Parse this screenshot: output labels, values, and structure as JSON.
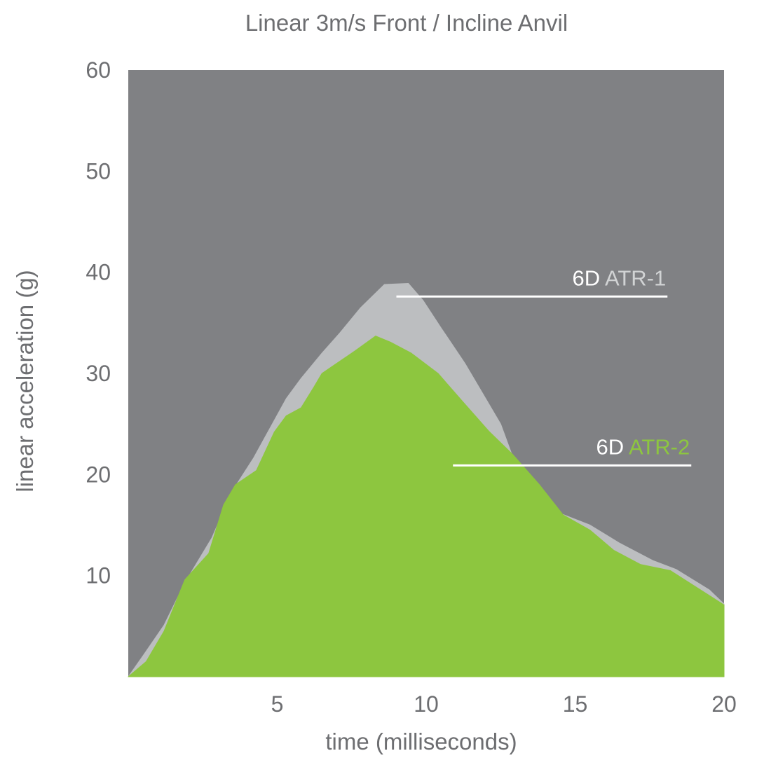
{
  "chart_data": {
    "type": "area",
    "title": "Linear 3m/s Front / Incline Anvil",
    "xlabel": "time (milliseconds)",
    "ylabel": "linear acceleration (g)",
    "xlim": [
      0,
      20
    ],
    "ylim": [
      0,
      60
    ],
    "xticks": [
      5,
      10,
      15,
      20
    ],
    "yticks": [
      10,
      20,
      30,
      40,
      50,
      60
    ],
    "background_color": "#808184",
    "series": [
      {
        "label_prefix": "6D",
        "name": "ATR-1",
        "color": "#bcbec0",
        "label_color": "#d1d3d4",
        "points": [
          [
            0,
            0
          ],
          [
            0.5,
            2.1
          ],
          [
            1.2,
            5.1
          ],
          [
            1.9,
            9.3
          ],
          [
            2.8,
            13.7
          ],
          [
            3.5,
            18.4
          ],
          [
            4.2,
            21.6
          ],
          [
            5.3,
            27.5
          ],
          [
            5.8,
            29.5
          ],
          [
            6.5,
            32.0
          ],
          [
            7.1,
            34.0
          ],
          [
            7.8,
            36.5
          ],
          [
            8.6,
            38.8
          ],
          [
            9.4,
            38.9
          ],
          [
            9.9,
            37.2
          ],
          [
            10.5,
            34.5
          ],
          [
            11.3,
            31.0
          ],
          [
            11.9,
            28.0
          ],
          [
            12.5,
            25.0
          ],
          [
            13.0,
            21.0
          ],
          [
            14.2,
            16.5
          ],
          [
            15.5,
            15.0
          ],
          [
            16.5,
            13.2
          ],
          [
            17.6,
            11.5
          ],
          [
            18.4,
            10.6
          ],
          [
            19.5,
            8.6
          ],
          [
            20,
            7.2
          ]
        ]
      },
      {
        "label_prefix": "6D",
        "name": "ATR-2",
        "color": "#8dc63f",
        "label_color": "#8dc63f",
        "points": [
          [
            0,
            0
          ],
          [
            0.6,
            1.5
          ],
          [
            1.2,
            4.5
          ],
          [
            1.9,
            9.6
          ],
          [
            2.7,
            12.2
          ],
          [
            3.2,
            17.0
          ],
          [
            3.6,
            19.0
          ],
          [
            4.3,
            20.4
          ],
          [
            4.9,
            24.2
          ],
          [
            5.3,
            25.8
          ],
          [
            5.8,
            26.6
          ],
          [
            6.2,
            28.5
          ],
          [
            6.5,
            30.0
          ],
          [
            7.0,
            31.0
          ],
          [
            7.6,
            32.2
          ],
          [
            8.3,
            33.7
          ],
          [
            8.8,
            33.1
          ],
          [
            9.5,
            32.0
          ],
          [
            10.4,
            30.0
          ],
          [
            11.2,
            27.3
          ],
          [
            12.1,
            24.3
          ],
          [
            12.9,
            22.0
          ],
          [
            13.8,
            19.0
          ],
          [
            14.6,
            16.0
          ],
          [
            15.5,
            14.5
          ],
          [
            16.3,
            12.5
          ],
          [
            17.2,
            11.1
          ],
          [
            18.2,
            10.5
          ],
          [
            19.1,
            8.8
          ],
          [
            20,
            7.1
          ]
        ]
      }
    ],
    "annotations": [
      {
        "series": 0,
        "x_start": 9.0,
        "x_end": 18.1,
        "y": 37.6
      },
      {
        "series": 1,
        "x_start": 10.9,
        "x_end": 18.9,
        "y": 20.9
      }
    ]
  }
}
